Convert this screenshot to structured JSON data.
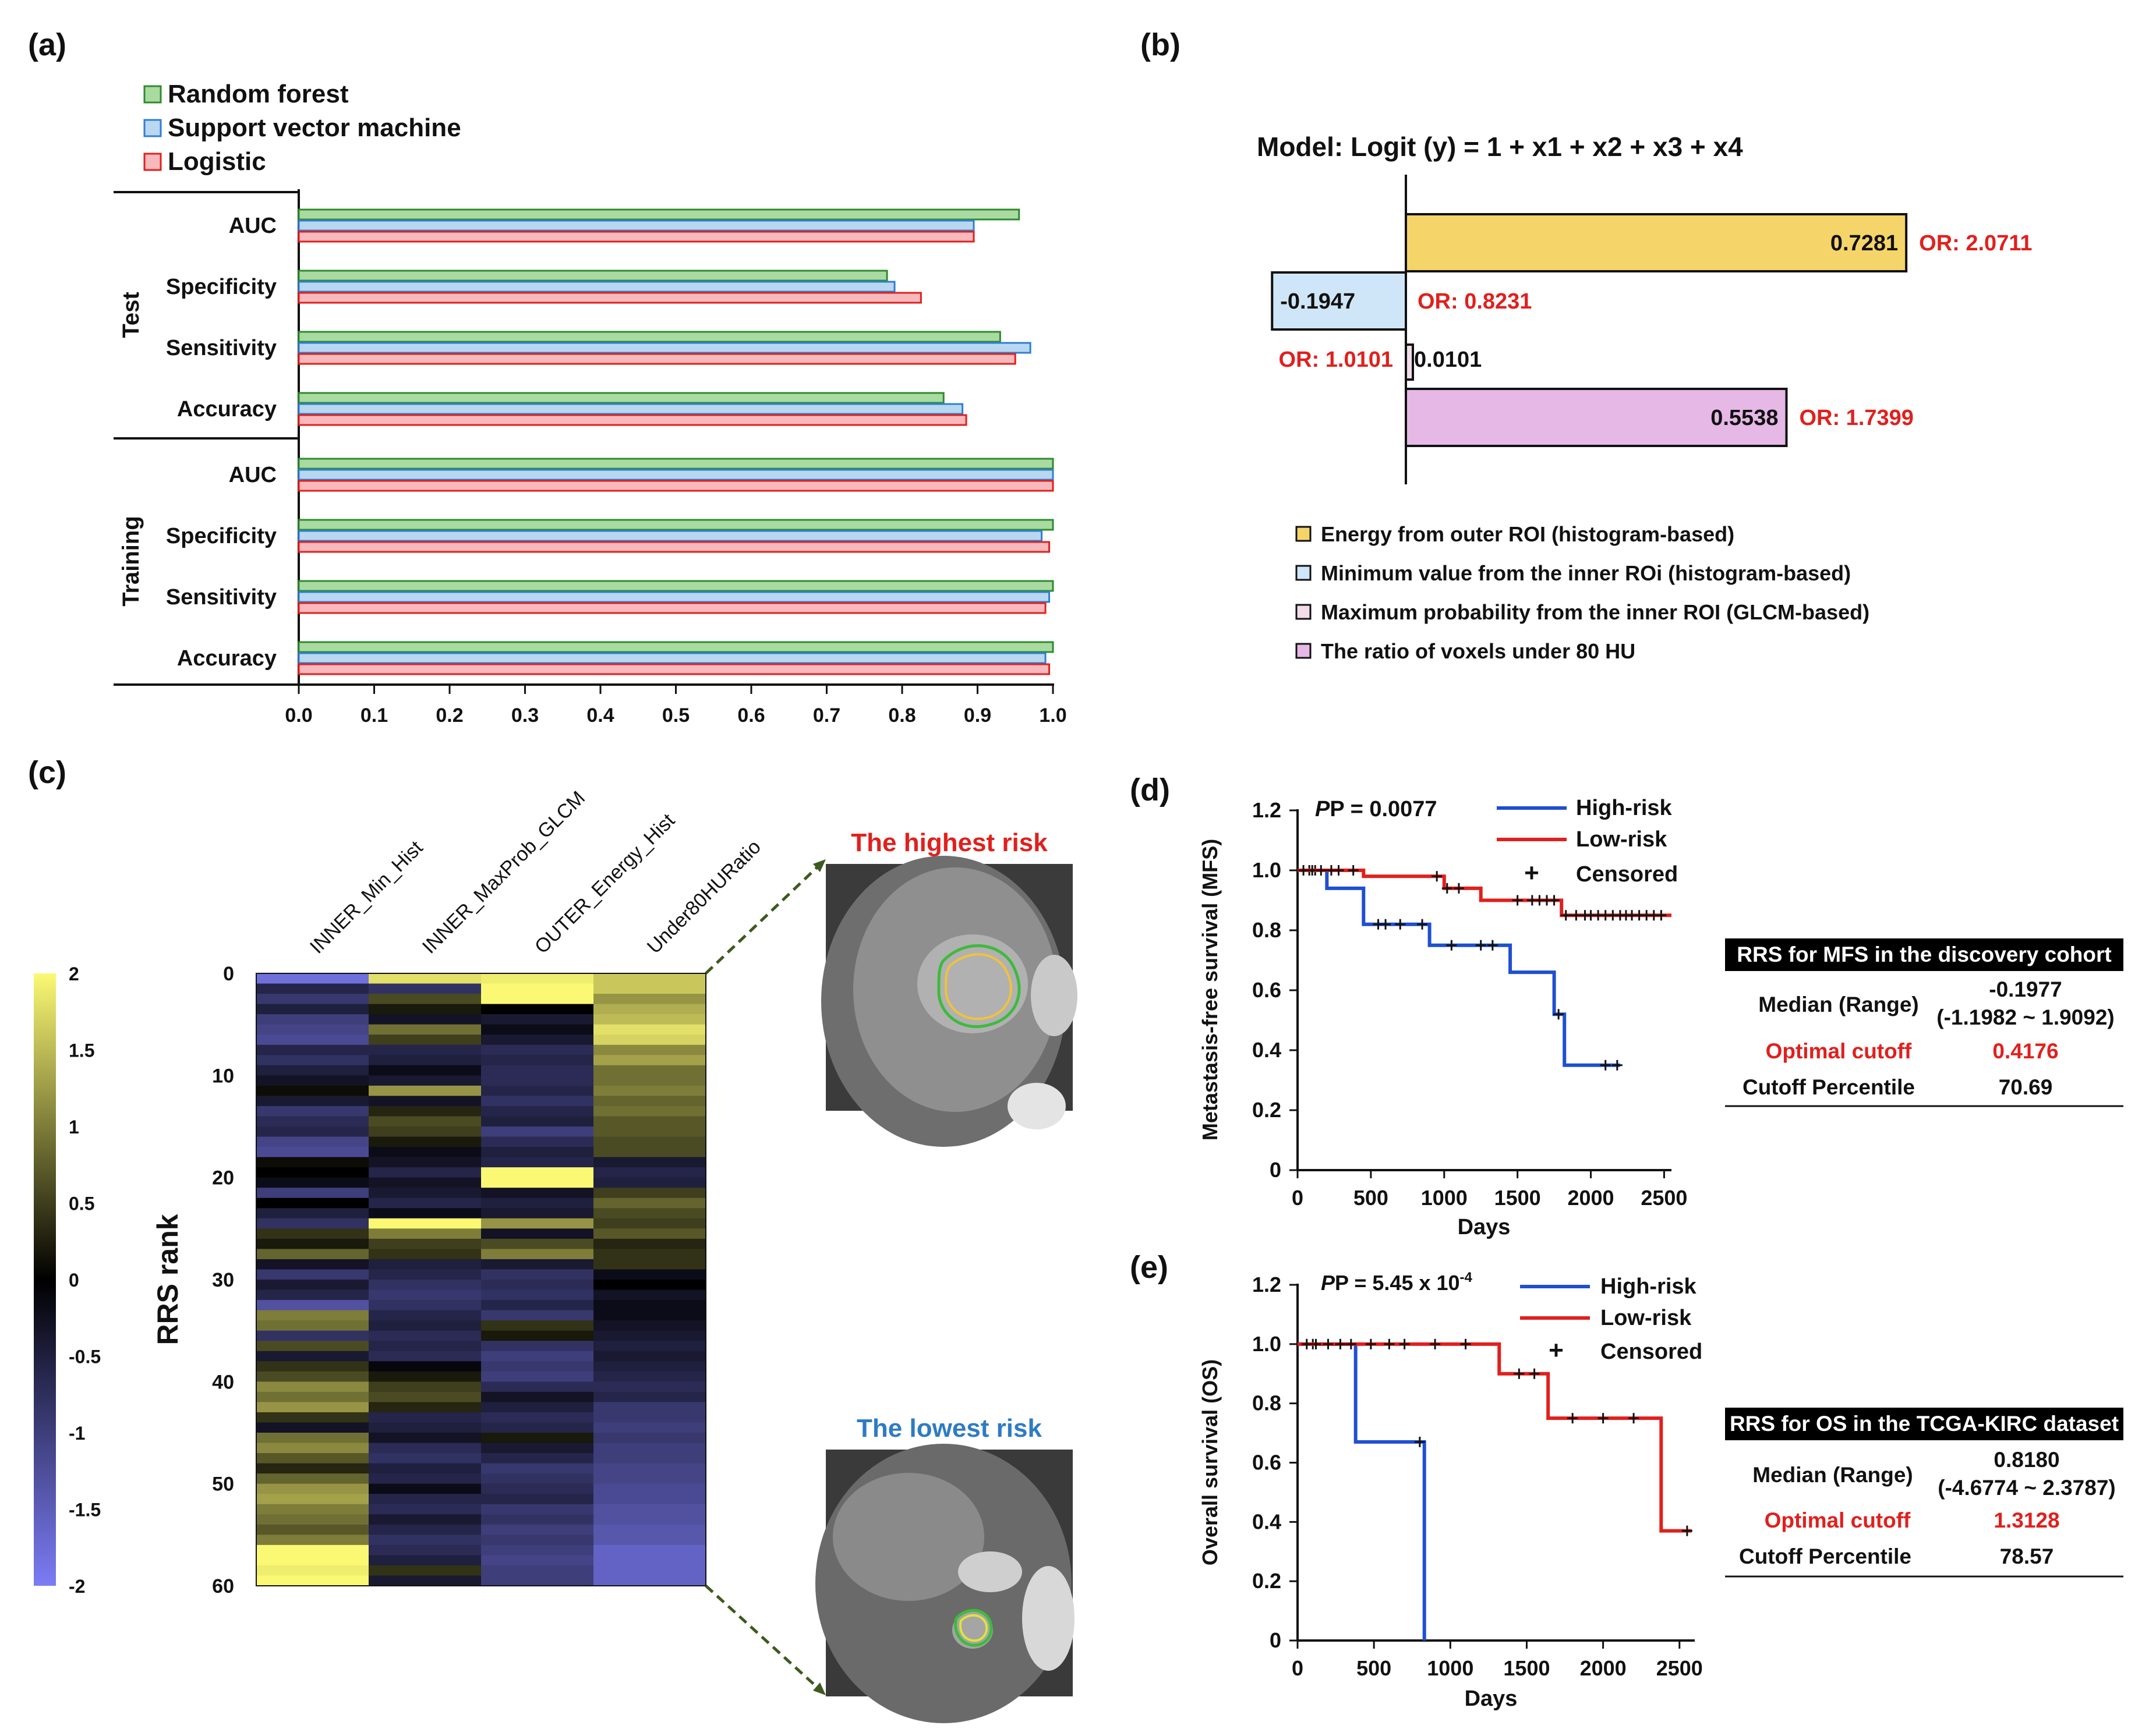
{
  "panels": {
    "a": "(a)",
    "b": "(b)",
    "c": "(c)",
    "d": "(d)",
    "e": "(e)"
  },
  "colors": {
    "rf_fill": "#a9dba1",
    "rf_stroke": "#2e8b2e",
    "svm_fill": "#b9d7f1",
    "svm_stroke": "#2f7fd0",
    "log_fill": "#f8b9bd",
    "log_stroke": "#e0201d",
    "energy": "#f5d46a",
    "minval": "#cfe6f8",
    "maxprob": "#f3dcea",
    "ratio": "#e6b8e6",
    "high": "#1f4fd1",
    "low": "#e0201d"
  },
  "panel_a": {
    "legend": [
      "Random forest",
      "Support vector machine",
      "Logistic"
    ],
    "groups": [
      "Test",
      "Training"
    ]
  },
  "panel_b": {
    "model": "Model: Logit (y) = 1 + x1 + x2 + x3 + x4",
    "bars": [
      {
        "value_label": "0.7281",
        "or_label": "OR: 2.0711"
      },
      {
        "value_label": "-0.1947",
        "or_label": "OR: 0.8231"
      },
      {
        "value_label": "0.0101",
        "or_label": "OR: 1.0101"
      },
      {
        "value_label": "0.5538",
        "or_label": "OR: 1.7399"
      }
    ],
    "legend": [
      "Energy from outer ROI (histogram-based)",
      "Minimum value from the inner ROi (histogram-based)",
      "Maximum probability from the inner ROI (GLCM-based)",
      "The ratio of voxels under 80 HU"
    ]
  },
  "panel_c": {
    "columns": [
      "INNER_Min_Hist",
      "INNER_MaxProb_GLCM",
      "OUTER_Energy_Hist",
      "Under80HURatio"
    ],
    "ylabel": "RRS rank",
    "row_ticks": [
      "0",
      "10",
      "20",
      "30",
      "40",
      "50",
      "60"
    ],
    "colorbar_ticks": [
      "2",
      "1.5",
      "1",
      "0.5",
      "0",
      "-0.5",
      "-1",
      "-1.5",
      "-2"
    ],
    "highest_label": "The highest risk",
    "lowest_label": "The lowest risk"
  },
  "panel_d": {
    "pvalue": "P = 0.0077",
    "ylabel": "Metastasis-free survival (MFS)",
    "xlabel": "Days",
    "legend": [
      "High-risk",
      "Low-risk",
      "Censored"
    ],
    "table": {
      "title": "RRS for MFS in the discovery cohort",
      "median_label": "Median (Range)",
      "median_value": "-0.1977",
      "range_value": "(-1.1982 ~ 1.9092)",
      "cutoff_label": "Optimal cutoff",
      "cutoff_value": "0.4176",
      "pct_label": "Cutoff Percentile",
      "pct_value": "70.69"
    }
  },
  "panel_e": {
    "pvalue_prefix": "P = 5.45 x 10",
    "pvalue_exp": "-4",
    "ylabel": "Overall survival (OS)",
    "xlabel": "Days",
    "legend": [
      "High-risk",
      "Low-risk",
      "Censored"
    ],
    "table": {
      "title": "RRS for OS in the TCGA-KIRC dataset",
      "median_label": "Median (Range)",
      "median_value": "0.8180",
      "range_value": "(-4.6774 ~ 2.3787)",
      "cutoff_label": "Optimal cutoff",
      "cutoff_value": "1.3128",
      "pct_label": "Cutoff Percentile",
      "pct_value": "78.57"
    }
  },
  "chart_data": [
    {
      "type": "bar",
      "orientation": "horizontal",
      "title": "",
      "categories": [
        "AUC",
        "Specificity",
        "Sensitivity",
        "Accuracy",
        "AUC",
        "Specificity",
        "Sensitivity",
        "Accuracy"
      ],
      "groups": [
        "Test",
        "Test",
        "Test",
        "Test",
        "Training",
        "Training",
        "Training",
        "Training"
      ],
      "series": [
        {
          "name": "Random forest",
          "values": [
            0.955,
            0.78,
            0.93,
            0.855,
            1.0,
            1.0,
            1.0,
            1.0
          ]
        },
        {
          "name": "Support vector machine",
          "values": [
            0.895,
            0.79,
            0.97,
            0.88,
            1.0,
            0.985,
            0.995,
            0.99
          ]
        },
        {
          "name": "Logistic",
          "values": [
            0.895,
            0.825,
            0.95,
            0.885,
            1.0,
            0.995,
            0.99,
            0.995
          ]
        }
      ],
      "xlim": [
        0,
        1.0
      ],
      "xticks": [
        "0.0",
        "0.1",
        "0.2",
        "0.3",
        "0.4",
        "0.5",
        "0.6",
        "0.7",
        "0.8",
        "0.9",
        "1.0"
      ]
    },
    {
      "type": "bar",
      "orientation": "horizontal",
      "title": "Model: Logit (y) = 1 + x1 + x2 + x3 + x4",
      "categories": [
        "Energy from outer ROI (histogram-based)",
        "Minimum value from the inner ROi (histogram-based)",
        "Maximum probability from the inner ROI (GLCM-based)",
        "The ratio of voxels under 80 HU"
      ],
      "values": [
        0.7281,
        -0.1947,
        0.0101,
        0.5538
      ],
      "odds_ratios": [
        2.0711,
        0.8231,
        1.0101,
        1.7399
      ],
      "xlim": [
        -0.2,
        0.75
      ]
    },
    {
      "type": "heatmap",
      "columns": [
        "INNER_Min_Hist",
        "INNER_MaxProb_GLCM",
        "OUTER_Energy_Hist",
        "Under80HURatio"
      ],
      "rows": 60,
      "zlim": [
        -2,
        2
      ],
      "values": [
        [
          -1.8,
          1.8,
          1.9,
          1.6
        ],
        [
          -0.6,
          -0.8,
          2.0,
          1.6
        ],
        [
          -0.9,
          0.6,
          2.0,
          1.2
        ],
        [
          -0.5,
          0.2,
          0.0,
          1.4
        ],
        [
          -1.0,
          -0.3,
          -0.4,
          1.5
        ],
        [
          -1.1,
          0.9,
          -0.2,
          1.8
        ],
        [
          -1.2,
          0.5,
          -0.4,
          1.7
        ],
        [
          -0.6,
          -0.6,
          -0.7,
          1.1
        ],
        [
          -0.8,
          -0.5,
          -0.6,
          1.3
        ],
        [
          -0.5,
          -0.2,
          -0.7,
          0.9
        ],
        [
          -0.3,
          -0.4,
          -0.7,
          0.9
        ],
        [
          0.1,
          1.2,
          -0.6,
          1.0
        ],
        [
          -0.4,
          -0.3,
          -0.8,
          0.8
        ],
        [
          -0.9,
          0.3,
          -0.6,
          0.9
        ],
        [
          -0.7,
          0.6,
          -0.5,
          0.7
        ],
        [
          -0.6,
          0.5,
          -1.0,
          0.7
        ],
        [
          -1.1,
          0.2,
          -0.7,
          0.6
        ],
        [
          -1.2,
          -0.2,
          -0.5,
          0.6
        ],
        [
          0.1,
          -0.3,
          -0.6,
          -0.4
        ],
        [
          0.0,
          -0.6,
          2.0,
          -0.6
        ],
        [
          -0.2,
          -0.3,
          2.0,
          -0.5
        ],
        [
          -1.0,
          -0.4,
          -0.3,
          0.5
        ],
        [
          0.0,
          -0.6,
          -0.5,
          0.8
        ],
        [
          -0.5,
          -0.2,
          -0.4,
          0.6
        ],
        [
          -0.8,
          2.0,
          1.2,
          0.5
        ],
        [
          0.4,
          1.0,
          -0.3,
          0.7
        ],
        [
          0.2,
          0.5,
          0.6,
          0.3
        ],
        [
          0.8,
          0.4,
          1.0,
          0.4
        ],
        [
          -0.3,
          -0.5,
          -0.4,
          0.4
        ],
        [
          -0.9,
          -0.6,
          -0.8,
          -0.2
        ],
        [
          -0.4,
          -0.8,
          -0.7,
          0.0
        ],
        [
          -0.6,
          -0.9,
          -0.8,
          -0.3
        ],
        [
          -1.3,
          -0.8,
          -0.6,
          -0.2
        ],
        [
          1.0,
          -0.6,
          -0.9,
          -0.2
        ],
        [
          0.9,
          -0.5,
          0.4,
          -0.3
        ],
        [
          -0.8,
          -0.7,
          0.2,
          -0.4
        ],
        [
          0.6,
          -0.6,
          -0.8,
          -0.5
        ],
        [
          -0.4,
          -0.7,
          -1.0,
          -0.4
        ],
        [
          0.4,
          -0.1,
          -0.9,
          -0.5
        ],
        [
          0.6,
          0.2,
          -1.0,
          -0.6
        ],
        [
          1.1,
          0.5,
          -0.7,
          -0.7
        ],
        [
          0.9,
          0.6,
          -0.3,
          -0.6
        ],
        [
          1.2,
          0.3,
          -0.5,
          -0.9
        ],
        [
          0.4,
          -0.6,
          -0.7,
          -0.9
        ],
        [
          -0.3,
          -0.5,
          -0.6,
          -1.0
        ],
        [
          0.9,
          -0.3,
          0.2,
          -0.9
        ],
        [
          1.1,
          -0.7,
          -0.4,
          -1.0
        ],
        [
          0.7,
          -0.8,
          -0.6,
          -1.0
        ],
        [
          0.3,
          -0.5,
          -0.9,
          -1.1
        ],
        [
          0.8,
          -0.6,
          -0.8,
          -1.1
        ],
        [
          1.2,
          -0.2,
          -0.7,
          -1.2
        ],
        [
          1.3,
          -0.6,
          -0.6,
          -1.2
        ],
        [
          1.0,
          -0.7,
          -0.9,
          -1.3
        ],
        [
          0.9,
          -0.4,
          -0.8,
          -1.3
        ],
        [
          0.7,
          -0.6,
          -1.0,
          -1.4
        ],
        [
          1.0,
          -0.8,
          -0.9,
          -1.4
        ],
        [
          2.0,
          -0.7,
          -1.0,
          -1.6
        ],
        [
          2.0,
          -0.5,
          -1.1,
          -1.6
        ],
        [
          1.9,
          0.4,
          -1.0,
          -1.6
        ],
        [
          2.0,
          -0.4,
          -1.0,
          -1.6
        ]
      ]
    },
    {
      "type": "line",
      "subtype": "kaplan-meier",
      "title": "P = 0.0077",
      "xlabel": "Days",
      "ylabel": "Metastasis-free survival (MFS)",
      "xlim": [
        0,
        2550
      ],
      "ylim": [
        0,
        1.2
      ],
      "xticks": [
        "0",
        "500",
        "1000",
        "1500",
        "2000",
        "2500"
      ],
      "yticks": [
        "0",
        "0.2",
        "0.4",
        "0.6",
        "0.8",
        "1.0",
        "1.2"
      ],
      "series": [
        {
          "name": "High-risk",
          "x": [
            0,
            200,
            200,
            450,
            450,
            900,
            900,
            1450,
            1450,
            1750,
            1750,
            1820,
            1820,
            2200
          ],
          "y": [
            1.0,
            1.0,
            0.94,
            0.94,
            0.82,
            0.82,
            0.75,
            0.75,
            0.66,
            0.66,
            0.52,
            0.52,
            0.35,
            0.35
          ],
          "censored_x": [
            80,
            120,
            550,
            600,
            700,
            850,
            1050,
            1250,
            1330,
            1780,
            2100,
            2180
          ]
        },
        {
          "name": "Low-risk",
          "x": [
            0,
            450,
            450,
            1000,
            1000,
            1250,
            1250,
            1800,
            1800,
            2550
          ],
          "y": [
            1.0,
            1.0,
            0.98,
            0.98,
            0.94,
            0.94,
            0.9,
            0.9,
            0.85,
            0.85
          ],
          "censored_x": [
            40,
            100,
            160,
            230,
            280,
            380,
            950,
            1020,
            1100,
            1500,
            1600,
            1650,
            1700,
            1750,
            1830,
            1900,
            1960,
            2000,
            2050,
            2100,
            2150,
            2200,
            2240,
            2280,
            2330,
            2380,
            2430,
            2480
          ]
        }
      ]
    },
    {
      "type": "line",
      "subtype": "kaplan-meier",
      "title": "P = 5.45 x 10^-4",
      "xlabel": "Days",
      "ylabel": "Overall survival (OS)",
      "xlim": [
        0,
        2600
      ],
      "ylim": [
        0,
        1.2
      ],
      "xticks": [
        "0",
        "500",
        "1000",
        "1500",
        "2000",
        "2500"
      ],
      "yticks": [
        "0",
        "0.2",
        "0.4",
        "0.6",
        "0.8",
        "1.0",
        "1.2"
      ],
      "series": [
        {
          "name": "High-risk",
          "x": [
            0,
            380,
            380,
            830,
            830
          ],
          "y": [
            1.0,
            1.0,
            0.67,
            0.67,
            0.0
          ],
          "censored_x": [
            100,
            800
          ]
        },
        {
          "name": "Low-risk",
          "x": [
            0,
            1320,
            1320,
            1640,
            1640,
            2380,
            2380,
            2580
          ],
          "y": [
            1.0,
            1.0,
            0.9,
            0.9,
            0.75,
            0.75,
            0.37,
            0.37
          ],
          "censored_x": [
            60,
            120,
            200,
            280,
            350,
            480,
            600,
            700,
            900,
            1100,
            1450,
            1550,
            1800,
            2000,
            2200,
            2550
          ]
        }
      ]
    }
  ]
}
